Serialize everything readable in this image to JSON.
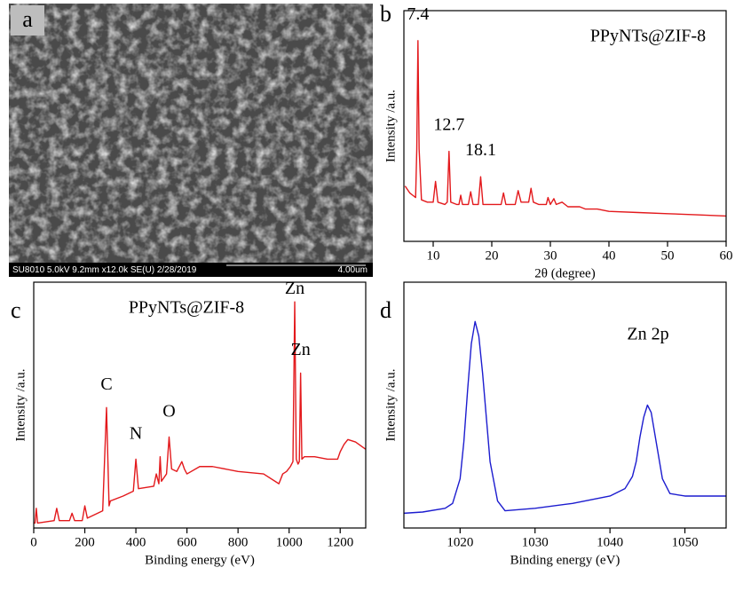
{
  "sem_image": {
    "label": "a",
    "info": "SU8010 5.0kV 9.2mm x12.0k SE(U) 2/28/2019",
    "scale": "4.00um"
  },
  "chart_data": [
    {
      "type": "line",
      "label": "b",
      "title": "PPyNTs@ZIF-8",
      "x_label": "2θ (degree)",
      "y_label": "Intensity /a.u.",
      "x": [
        5.2,
        6,
        6.5,
        7,
        7.2,
        7.4,
        7.6,
        8,
        9,
        10,
        10.4,
        10.8,
        12,
        12.4,
        12.7,
        13,
        14,
        14.4,
        14.7,
        15,
        16,
        16.4,
        16.8,
        17.7,
        18.1,
        18.5,
        20,
        21.6,
        22,
        22.4,
        24,
        24.5,
        25,
        26.3,
        26.7,
        27.1,
        28,
        29.3,
        29.6,
        30,
        30.6,
        31,
        32,
        33,
        35,
        36,
        38,
        40,
        45,
        50,
        55,
        60
      ],
      "series": [
        {
          "color": "#e3191c",
          "values": [
            24,
            21,
            20,
            19,
            40,
            87,
            40,
            18,
            17,
            17,
            26,
            17,
            16,
            17,
            39,
            17,
            16,
            16,
            20,
            16,
            16,
            21.5,
            16,
            16,
            28,
            16,
            16,
            16,
            21,
            16,
            16,
            22,
            17,
            17,
            23,
            17,
            16,
            16,
            19,
            16,
            18.5,
            16,
            17,
            15,
            15,
            14,
            14,
            13,
            12.5,
            12,
            11.5,
            11
          ]
        }
      ],
      "xlim": [
        5,
        60
      ],
      "ylim": [
        0,
        100
      ],
      "xticks": [
        10,
        20,
        30,
        40,
        50,
        60
      ],
      "annotations": [
        {
          "text": "7.4",
          "x": 7.4,
          "y": 98
        },
        {
          "text": "12.7",
          "x": 12.7,
          "y": 50
        },
        {
          "text": "18.1",
          "x": 18.1,
          "y": 39
        }
      ]
    },
    {
      "type": "line",
      "label": "c",
      "title": "PPyNTs@ZIF-8",
      "x_label": "Binding energy (eV)",
      "y_label": "Intensity /a.u.",
      "x": [
        0,
        5,
        10,
        15,
        80,
        90,
        100,
        140,
        150,
        160,
        190,
        200,
        210,
        270,
        285,
        295,
        300,
        350,
        390,
        400,
        410,
        470,
        480,
        490,
        495,
        500,
        520,
        530,
        540,
        560,
        580,
        590,
        600,
        650,
        700,
        800,
        900,
        960,
        975,
        990,
        1005,
        1015,
        1022,
        1028,
        1035,
        1040,
        1045,
        1050,
        1060,
        1100,
        1150,
        1190,
        1200,
        1215,
        1230,
        1260,
        1300
      ],
      "series": [
        {
          "color": "#e3191c",
          "values": [
            2,
            2,
            8,
            2,
            3,
            8,
            3,
            3,
            6,
            3,
            3,
            9,
            4,
            7,
            49,
            9,
            11,
            13,
            15,
            28,
            16,
            17,
            22,
            18,
            29,
            19,
            22,
            37,
            24,
            23,
            27,
            24,
            22,
            25,
            25,
            23,
            22,
            18,
            22,
            23,
            25,
            27,
            92,
            28,
            26,
            27,
            63,
            28,
            29,
            29,
            28,
            28,
            31,
            34,
            36,
            35,
            32
          ]
        }
      ],
      "xlim": [
        0,
        1300
      ],
      "ylim": [
        0,
        100
      ],
      "xticks": [
        0,
        200,
        400,
        600,
        800,
        1000,
        1200
      ],
      "annotations": [
        {
          "text": "C",
          "x": 285,
          "y": 58
        },
        {
          "text": "N",
          "x": 400,
          "y": 38
        },
        {
          "text": "O",
          "x": 530,
          "y": 47
        },
        {
          "text": "Zn",
          "x": 1022,
          "y": 97
        },
        {
          "text": "Zn",
          "x": 1045,
          "y": 72
        }
      ]
    },
    {
      "type": "line",
      "label": "d",
      "title": "Zn 2p",
      "x_label": "Binding energy (eV)",
      "y_label": "Intensity /a.u.",
      "x": [
        1012.5,
        1015,
        1018,
        1019,
        1020,
        1020.5,
        1021,
        1021.5,
        1022,
        1022.5,
        1023,
        1023.5,
        1024,
        1025,
        1026,
        1028,
        1030,
        1035,
        1040,
        1042,
        1043,
        1043.5,
        1044,
        1044.5,
        1045,
        1045.5,
        1046,
        1047,
        1048,
        1050,
        1055.5
      ],
      "series": [
        {
          "color": "#1c1ccf",
          "values": [
            6,
            6.5,
            8,
            10,
            20,
            35,
            56,
            75,
            84,
            78,
            63,
            45,
            27,
            11,
            7,
            7.5,
            8,
            10,
            13,
            16,
            21,
            27,
            37,
            45,
            50,
            47,
            38,
            20,
            14,
            13,
            13
          ]
        }
      ],
      "xlim": [
        1012.5,
        1055.5
      ],
      "ylim": [
        0,
        100
      ],
      "xticks": [
        1020,
        1030,
        1040,
        1050
      ],
      "annotations": []
    }
  ]
}
